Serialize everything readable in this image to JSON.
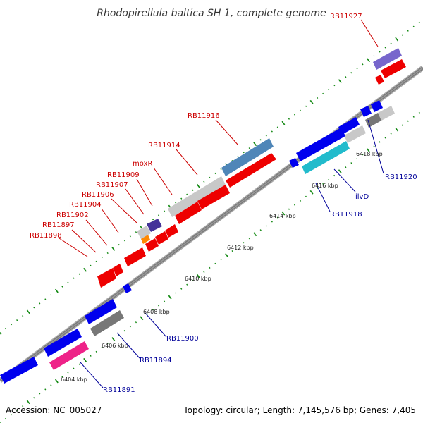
{
  "title": "Rhodopirellula baltica SH 1, complete genome",
  "footer": {
    "accession": "Accession: NC_005027",
    "summary": "Topology: circular; Length: 7,145,576 bp; Genes: 7,405"
  },
  "colors": {
    "backbone": "#8c8c8c",
    "forward_gene": "#0000ee",
    "reverse_gene": "#ee0000",
    "tick": "#118811",
    "label_red": "#cc0000",
    "label_blue": "#000099"
  },
  "ticks": [
    "6404 kbp",
    "6406 kbp",
    "6408 kbp",
    "6410 kbp",
    "6412 kbp",
    "6414 kbp",
    "6416 kbp",
    "6418 kbp"
  ],
  "labels": {
    "reverse": [
      "RB11927",
      "RB11916",
      "RB11914",
      "moxR",
      "RB11909",
      "RB11907",
      "RB11906",
      "RB11904",
      "RB11902",
      "RB11897",
      "RB11898"
    ],
    "forward": [
      "RB11920",
      "ilvD",
      "RB11918",
      "RB11900",
      "RB11894",
      "RB11891"
    ]
  }
}
